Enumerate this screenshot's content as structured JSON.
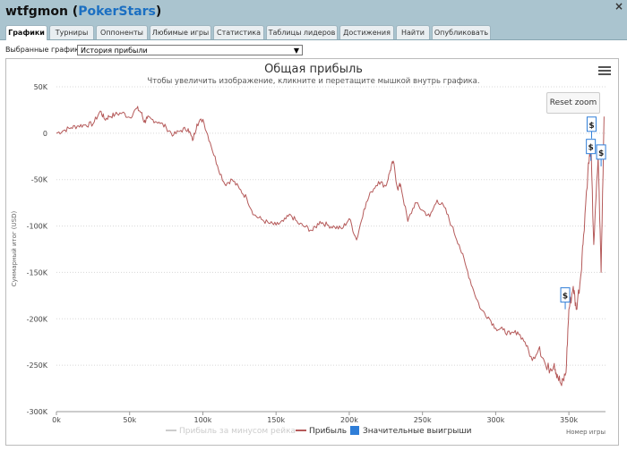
{
  "window": {
    "title_user": "wtfgmon",
    "title_site": "PokerStars",
    "close": "×"
  },
  "tabs": [
    {
      "label": "Графики",
      "active": true
    },
    {
      "label": "Турниры"
    },
    {
      "label": "Оппоненты"
    },
    {
      "label": "Любимые игры"
    },
    {
      "label": "Статистика"
    },
    {
      "label": "Таблицы лидеров"
    },
    {
      "label": "Достижения"
    },
    {
      "label": "Найти"
    },
    {
      "label": "Опубликовать"
    }
  ],
  "selector": {
    "label": "Выбранные графики:",
    "value": "История прибыли"
  },
  "controls": {
    "reset_zoom": "Reset zoom"
  },
  "chart_data": {
    "type": "line",
    "title": "Общая прибыль",
    "subtitle": "Чтобы увеличить изображение, кликните и перетащите мышкой внутрь графика.",
    "xlabel": "Номер игры",
    "ylabel": "Суммарный итог (USD)",
    "xlim": [
      0,
      375000
    ],
    "ylim": [
      -300000,
      50000
    ],
    "x_ticks": [
      0,
      50000,
      100000,
      150000,
      200000,
      250000,
      300000,
      350000
    ],
    "x_tick_labels": [
      "0k",
      "50k",
      "100k",
      "150k",
      "200k",
      "250k",
      "300k",
      "350k"
    ],
    "y_ticks": [
      50000,
      0,
      -50000,
      -100000,
      -150000,
      -200000,
      -250000,
      -300000
    ],
    "y_tick_labels": [
      "50K",
      "0",
      "-50K",
      "-100K",
      "-150K",
      "-200K",
      "-250K",
      "-300K"
    ],
    "grid": "horizontal dotted",
    "legend_position": "bottom-center",
    "legend": [
      {
        "name": "Прибыль за минусом рейка",
        "color": "#cccccc",
        "hidden": true
      },
      {
        "name": "Прибыль",
        "color": "#b55a5a"
      },
      {
        "name": "Значительные выигрыши",
        "color": "#2f7ed8",
        "marker": "square"
      }
    ],
    "series": [
      {
        "name": "Прибыль",
        "color": "#b55a5a",
        "x": [
          0,
          5000,
          10000,
          15000,
          20000,
          25000,
          30000,
          33000,
          36000,
          40000,
          45000,
          50000,
          55000,
          58000,
          60000,
          62000,
          65000,
          70000,
          75000,
          80000,
          85000,
          90000,
          93000,
          96000,
          100000,
          105000,
          110000,
          115000,
          120000,
          125000,
          130000,
          135000,
          140000,
          145000,
          150000,
          155000,
          160000,
          165000,
          170000,
          175000,
          180000,
          185000,
          190000,
          195000,
          200000,
          205000,
          210000,
          215000,
          220000,
          225000,
          228000,
          230000,
          233000,
          235000,
          240000,
          245000,
          250000,
          255000,
          260000,
          265000,
          270000,
          275000,
          280000,
          285000,
          290000,
          295000,
          300000,
          305000,
          310000,
          315000,
          320000,
          325000,
          330000,
          335000,
          340000,
          342000,
          345000,
          348000,
          350000,
          353000,
          355000,
          358000,
          360000,
          363000,
          365000,
          367000,
          370000,
          372000,
          374000
        ],
        "y": [
          0,
          3000,
          6000,
          8000,
          9000,
          10000,
          24000,
          15000,
          18000,
          20000,
          22000,
          17000,
          27000,
          22000,
          12000,
          16000,
          15000,
          12000,
          6000,
          -2000,
          3000,
          5000,
          -8000,
          10000,
          15000,
          -10000,
          -35000,
          -55000,
          -50000,
          -60000,
          -70000,
          -88000,
          -93000,
          -97000,
          -99000,
          -95000,
          -88000,
          -97000,
          -101000,
          -105000,
          -95000,
          -99000,
          -101000,
          -103000,
          -92000,
          -115000,
          -82000,
          -63000,
          -52000,
          -57000,
          -40000,
          -30000,
          -60000,
          -55000,
          -95000,
          -75000,
          -83000,
          -90000,
          -72000,
          -80000,
          -100000,
          -120000,
          -145000,
          -170000,
          -190000,
          -198000,
          -210000,
          -212000,
          -217000,
          -214000,
          -225000,
          -245000,
          -230000,
          -255000,
          -248000,
          -260000,
          -272000,
          -258000,
          -190000,
          -165000,
          -190000,
          -155000,
          -110000,
          -40000,
          -15000,
          -120000,
          -25000,
          -150000,
          18000
        ]
      }
    ],
    "flags": [
      {
        "x": 347500,
        "y": -182000,
        "label": "$"
      },
      {
        "x": 365500,
        "y": 2000,
        "label": "$"
      },
      {
        "x": 365000,
        "y": -22000,
        "label": "$"
      },
      {
        "x": 372000,
        "y": -28000,
        "label": "$"
      }
    ]
  }
}
